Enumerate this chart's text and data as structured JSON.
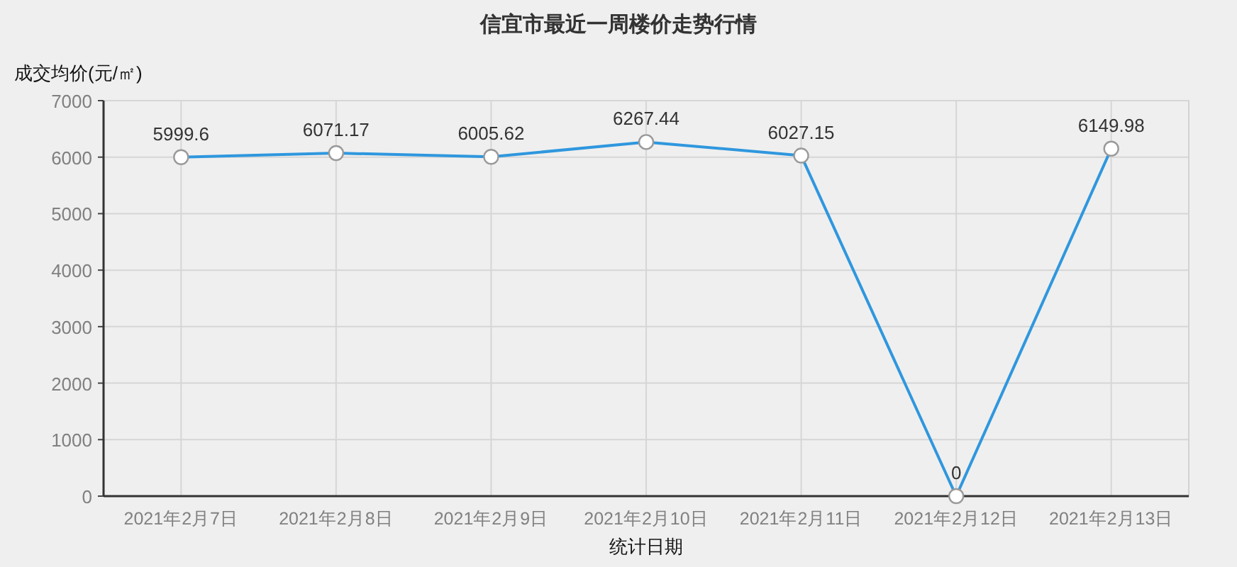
{
  "chart_data": {
    "type": "line",
    "title": "信宜市最近一周楼价走势行情",
    "xlabel": "统计日期",
    "ylabel": "成交均价(元/㎡)",
    "categories": [
      "2021年2月7日",
      "2021年2月8日",
      "2021年2月9日",
      "2021年2月10日",
      "2021年2月11日",
      "2021年2月12日",
      "2021年2月13日"
    ],
    "series": [
      {
        "color": "#2f97de",
        "values": [
          5999.6,
          6071.17,
          6005.62,
          6267.44,
          6027.15,
          0,
          6149.98
        ]
      }
    ],
    "ylim": [
      0,
      7000
    ],
    "yticks": [
      0,
      1000,
      2000,
      3000,
      4000,
      5000,
      6000,
      7000
    ],
    "grid": true,
    "marker": "circle",
    "line_style": "solid",
    "data_labels": true
  }
}
